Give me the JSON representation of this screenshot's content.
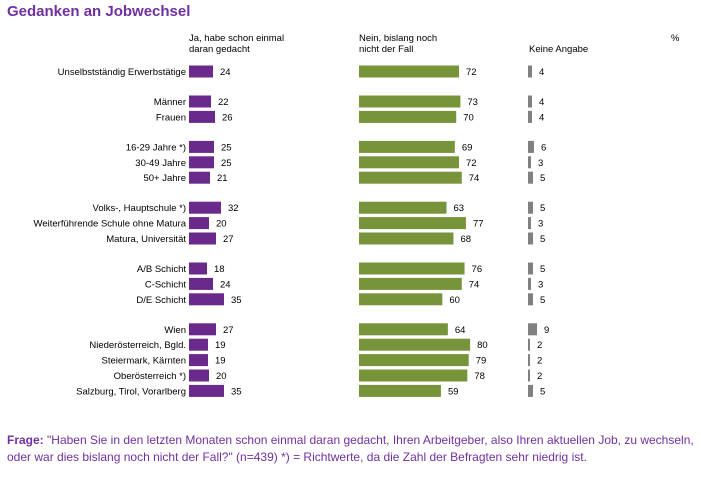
{
  "title": "Gedanken an Jobwechsel",
  "chart_data": {
    "type": "bar",
    "orientation": "horizontal",
    "unit": "%",
    "categories": [
      "Unselbstständig Erwerbstätige",
      "Männer",
      "Frauen",
      "16-29 Jahre *)",
      "30-49 Jahre",
      "50+ Jahre",
      "Volks-, Hauptschule *)",
      "Weiterführende Schule ohne Matura",
      "Matura, Universität",
      "A/B Schicht",
      "C-Schicht",
      "D/E Schicht",
      "Wien",
      "Niederösterreich, Bgld.",
      "Steiermark, Kärnten",
      "Oberösterreich *)",
      "Salzburg, Tirol, Vorarlberg"
    ],
    "groups": [
      [
        0
      ],
      [
        1,
        2
      ],
      [
        3,
        4,
        5
      ],
      [
        6,
        7,
        8
      ],
      [
        9,
        10,
        11
      ],
      [
        12,
        13,
        14,
        15,
        16
      ]
    ],
    "series": [
      {
        "name": "Ja, habe schon einmal daran gedacht",
        "color": "#6a2a8c",
        "values": [
          24,
          22,
          26,
          25,
          25,
          21,
          32,
          20,
          27,
          18,
          24,
          35,
          27,
          19,
          19,
          20,
          35
        ]
      },
      {
        "name": "Nein, bislang noch nicht der Fall",
        "color": "#77943b",
        "values": [
          72,
          73,
          70,
          69,
          72,
          74,
          63,
          77,
          68,
          76,
          74,
          60,
          64,
          80,
          79,
          78,
          59
        ]
      },
      {
        "name": "Keine Angabe",
        "color": "#808080",
        "values": [
          4,
          4,
          4,
          6,
          3,
          5,
          5,
          3,
          5,
          5,
          3,
          5,
          9,
          2,
          2,
          2,
          5
        ]
      }
    ]
  },
  "column_heads": {
    "yes_line1": "Ja, habe schon einmal",
    "yes_line2": "daran gedacht",
    "no_line1": "Nein, bislang noch",
    "no_line2": "nicht der Fall",
    "na": "Keine Angabe",
    "percent": "%"
  },
  "footer": {
    "label": "Frage:",
    "text": " \"Haben Sie in den letzten Monaten schon einmal daran gedacht, Ihren Arbeitgeber, also Ihren aktuellen Job, zu wechseln, oder war dies bislang noch nicht der Fall?\" (n=439) *) = Richtwerte, da die Zahl der Befragten sehr niedrig ist."
  }
}
